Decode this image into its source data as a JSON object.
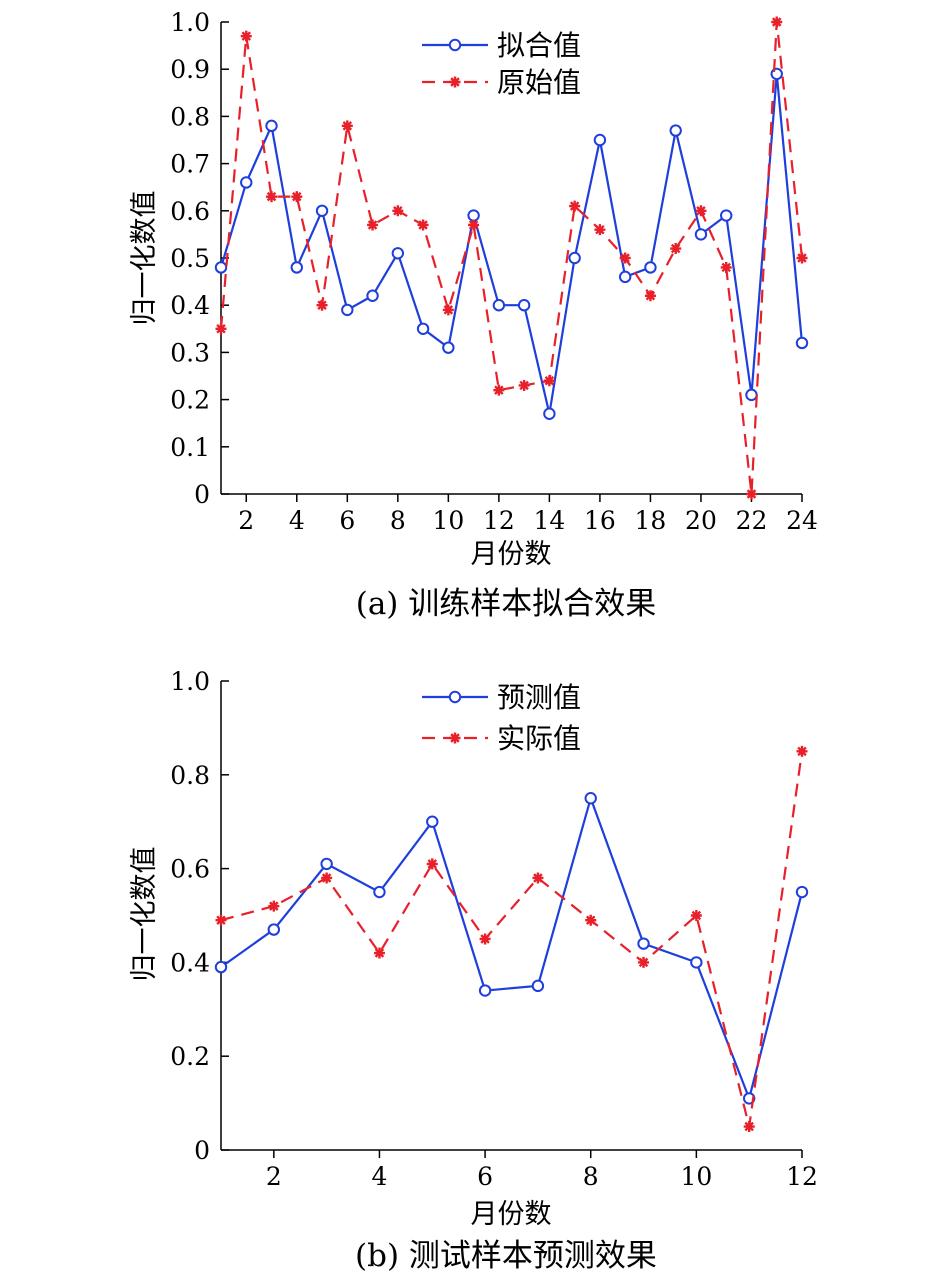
{
  "chart_data": [
    {
      "type": "line",
      "caption": "(a) 训练样本拟合效果",
      "xlabel": "月份数",
      "ylabel": "归一化数值",
      "xlim": [
        1,
        24
      ],
      "ylim": [
        0,
        1.0
      ],
      "x_ticks": [
        2,
        4,
        6,
        8,
        10,
        12,
        14,
        16,
        18,
        20,
        22,
        24
      ],
      "y_ticks": [
        "0",
        "0.1",
        "0.2",
        "0.3",
        "0.4",
        "0.5",
        "0.6",
        "0.7",
        "0.8",
        "0.9",
        "1.0"
      ],
      "legend_position": "top-center",
      "x": [
        1,
        2,
        3,
        4,
        5,
        6,
        7,
        8,
        9,
        10,
        11,
        12,
        13,
        14,
        15,
        16,
        17,
        18,
        19,
        20,
        21,
        22,
        23,
        24
      ],
      "series": [
        {
          "name": "拟合值",
          "color": "#1f3fdc",
          "style": "solid",
          "marker": "circle",
          "values": [
            0.48,
            0.66,
            0.78,
            0.48,
            0.6,
            0.39,
            0.42,
            0.51,
            0.35,
            0.31,
            0.59,
            0.4,
            0.4,
            0.17,
            0.5,
            0.75,
            0.46,
            0.48,
            0.77,
            0.55,
            0.59,
            0.21,
            0.89,
            0.32
          ]
        },
        {
          "name": "原始值",
          "color": "#e8202a",
          "style": "dashed",
          "marker": "star",
          "values": [
            0.35,
            0.97,
            0.63,
            0.63,
            0.4,
            0.78,
            0.57,
            0.6,
            0.57,
            0.39,
            0.57,
            0.22,
            0.23,
            0.24,
            0.61,
            0.56,
            0.5,
            0.42,
            0.52,
            0.6,
            0.48,
            0.0,
            1.0,
            0.5
          ]
        }
      ]
    },
    {
      "type": "line",
      "caption": "(b) 测试样本预测效果",
      "xlabel": "月份数",
      "ylabel": "归一化数值",
      "xlim": [
        1,
        12
      ],
      "ylim": [
        0,
        1.0
      ],
      "x_ticks": [
        2,
        4,
        6,
        8,
        10,
        12
      ],
      "y_ticks": [
        "0",
        "0.2",
        "0.4",
        "0.6",
        "0.8",
        "1.0"
      ],
      "legend_position": "top-center",
      "x": [
        1,
        2,
        3,
        4,
        5,
        6,
        7,
        8,
        9,
        10,
        11,
        12
      ],
      "series": [
        {
          "name": "预测值",
          "color": "#1f3fdc",
          "style": "solid",
          "marker": "circle",
          "values": [
            0.39,
            0.47,
            0.61,
            0.55,
            0.7,
            0.34,
            0.35,
            0.75,
            0.44,
            0.4,
            0.11,
            0.55
          ]
        },
        {
          "name": "实际值",
          "color": "#e8202a",
          "style": "dashed",
          "marker": "star",
          "values": [
            0.49,
            0.52,
            0.58,
            0.42,
            0.61,
            0.45,
            0.58,
            0.49,
            0.4,
            0.5,
            0.05,
            0.85
          ]
        }
      ]
    }
  ]
}
